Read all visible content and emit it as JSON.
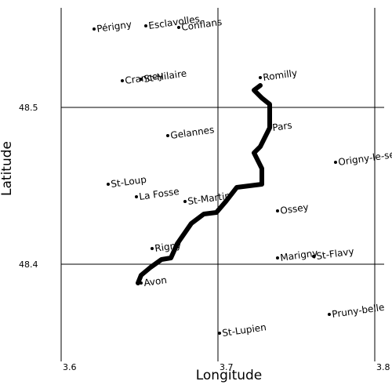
{
  "chart_data": {
    "type": "scatter",
    "xlabel": "Longitude",
    "ylabel": "Latitude",
    "xlim": [
      3.6,
      3.8
    ],
    "ylim": [
      48.34,
      48.563
    ],
    "x_ticks": [
      "3.6",
      "3.7",
      "3.8"
    ],
    "y_ticks": [
      "48.4",
      "48.5"
    ],
    "x_tick_values": [
      3.6,
      3.7,
      3.8
    ],
    "y_tick_values": [
      48.4,
      48.5
    ],
    "grid": true,
    "label_rotation": 8,
    "points": [
      {
        "name": "Périgny",
        "x": 3.621,
        "y": 48.55
      },
      {
        "name": "Esclavolles",
        "x": 3.654,
        "y": 48.552
      },
      {
        "name": "Conflans",
        "x": 3.675,
        "y": 48.551
      },
      {
        "name": "Crancey",
        "x": 3.639,
        "y": 48.517
      },
      {
        "name": "St-Hilaire",
        "x": 3.651,
        "y": 48.518
      },
      {
        "name": "Romilly",
        "x": 3.727,
        "y": 48.519
      },
      {
        "name": "Gelannes",
        "x": 3.668,
        "y": 48.482
      },
      {
        "name": "Pars",
        "x": 3.733,
        "y": 48.487
      },
      {
        "name": "Origny-le-sec",
        "x": 3.775,
        "y": 48.465
      },
      {
        "name": "St-Loup",
        "x": 3.63,
        "y": 48.451
      },
      {
        "name": "La Fosse",
        "x": 3.648,
        "y": 48.443
      },
      {
        "name": "St-Martin",
        "x": 3.679,
        "y": 48.44
      },
      {
        "name": "Ossey",
        "x": 3.738,
        "y": 48.434
      },
      {
        "name": "Rigny",
        "x": 3.658,
        "y": 48.41
      },
      {
        "name": "Marigny",
        "x": 3.738,
        "y": 48.404
      },
      {
        "name": "St-Flavy",
        "x": 3.761,
        "y": 48.405
      },
      {
        "name": "Avon",
        "x": 3.651,
        "y": 48.388
      },
      {
        "name": "Pruny-belle",
        "x": 3.771,
        "y": 48.368
      },
      {
        "name": "St-Lupien",
        "x": 3.701,
        "y": 48.356
      }
    ],
    "path": [
      [
        3.727,
        48.514
      ],
      [
        3.723,
        48.511
      ],
      [
        3.728,
        48.506
      ],
      [
        3.733,
        48.502
      ],
      [
        3.733,
        48.487
      ],
      [
        3.727,
        48.475
      ],
      [
        3.723,
        48.471
      ],
      [
        3.728,
        48.461
      ],
      [
        3.728,
        48.451
      ],
      [
        3.712,
        48.449
      ],
      [
        3.705,
        48.44
      ],
      [
        3.699,
        48.433
      ],
      [
        3.691,
        48.432
      ],
      [
        3.683,
        48.426
      ],
      [
        3.674,
        48.413
      ],
      [
        3.67,
        48.404
      ],
      [
        3.664,
        48.403
      ],
      [
        3.657,
        48.398
      ],
      [
        3.651,
        48.393
      ],
      [
        3.649,
        48.388
      ]
    ]
  }
}
